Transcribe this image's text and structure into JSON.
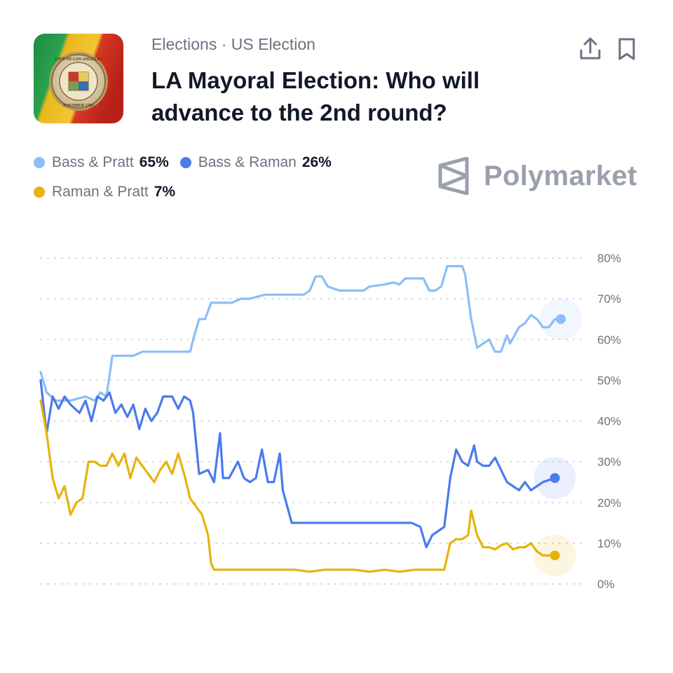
{
  "header": {
    "breadcrumb": "Elections · US Election",
    "title": "LA Mayoral Election: Who will advance to the 2nd round?",
    "logo_text_top": "CITY OF LOS ANGELES",
    "logo_text_bottom": "FOUNDED 1781"
  },
  "actions": {
    "share_icon": "upload-icon",
    "bookmark_icon": "bookmark-icon"
  },
  "brand": {
    "name": "Polymarket",
    "icon": "polymarket-logo-icon"
  },
  "legend": [
    {
      "name": "Bass & Pratt",
      "value": "65%",
      "color": "#8cbdf8"
    },
    {
      "name": "Bass & Raman",
      "value": "26%",
      "color": "#4a7bec"
    },
    {
      "name": "Raman & Pratt",
      "value": "7%",
      "color": "#e8b20c"
    }
  ],
  "chart_data": {
    "type": "line",
    "ylim": [
      0,
      80
    ],
    "yticks": [
      "0%",
      "10%",
      "20%",
      "30%",
      "40%",
      "50%",
      "60%",
      "70%",
      "80%"
    ],
    "grid": true,
    "series": [
      {
        "name": "Bass & Pratt",
        "color": "#8cbdf8",
        "points": [
          [
            0,
            52
          ],
          [
            2,
            47
          ],
          [
            5,
            45
          ],
          [
            10,
            45
          ],
          [
            15,
            46
          ],
          [
            18,
            45
          ],
          [
            20,
            47
          ],
          [
            22,
            46
          ],
          [
            24,
            56
          ],
          [
            27,
            56
          ],
          [
            31,
            56
          ],
          [
            34,
            57
          ],
          [
            38,
            57
          ],
          [
            42,
            57
          ],
          [
            48,
            57
          ],
          [
            50,
            57
          ],
          [
            51,
            60
          ],
          [
            53,
            65
          ],
          [
            55,
            65
          ],
          [
            57,
            69
          ],
          [
            60,
            69
          ],
          [
            64,
            69
          ],
          [
            67,
            70
          ],
          [
            70,
            70
          ],
          [
            75,
            71
          ],
          [
            80,
            71
          ],
          [
            85,
            71
          ],
          [
            88,
            71
          ],
          [
            90,
            72
          ],
          [
            92,
            75.5
          ],
          [
            94,
            75.5
          ],
          [
            96,
            73
          ],
          [
            100,
            72
          ],
          [
            104,
            72
          ],
          [
            108,
            72
          ],
          [
            110,
            73
          ],
          [
            115,
            73.5
          ],
          [
            118,
            74
          ],
          [
            120,
            73.5
          ],
          [
            122,
            75
          ],
          [
            125,
            75
          ],
          [
            128,
            75
          ],
          [
            130,
            72
          ],
          [
            132,
            72
          ],
          [
            134,
            73
          ],
          [
            136,
            78
          ],
          [
            139,
            78
          ],
          [
            141,
            78
          ],
          [
            142,
            76
          ],
          [
            144,
            65
          ],
          [
            146,
            58
          ],
          [
            148,
            59
          ],
          [
            150,
            60
          ],
          [
            152,
            57
          ],
          [
            154,
            57
          ],
          [
            156,
            61
          ],
          [
            157,
            59
          ],
          [
            160,
            63
          ],
          [
            162,
            64
          ],
          [
            164,
            66
          ],
          [
            166,
            65
          ],
          [
            168,
            63
          ],
          [
            170,
            63
          ],
          [
            172,
            65
          ],
          [
            174,
            65
          ]
        ]
      },
      {
        "name": "Bass & Raman",
        "color": "#4a7bec",
        "points": [
          [
            0,
            50
          ],
          [
            2,
            37
          ],
          [
            4,
            46
          ],
          [
            6,
            43
          ],
          [
            8,
            46
          ],
          [
            10,
            44
          ],
          [
            13,
            42
          ],
          [
            15,
            45
          ],
          [
            17,
            40
          ],
          [
            19,
            46
          ],
          [
            21,
            45
          ],
          [
            23,
            47
          ],
          [
            25,
            42
          ],
          [
            27,
            44
          ],
          [
            29,
            41
          ],
          [
            31,
            44
          ],
          [
            33,
            38
          ],
          [
            35,
            43
          ],
          [
            37,
            40
          ],
          [
            39,
            42
          ],
          [
            41,
            46
          ],
          [
            44,
            46
          ],
          [
            46,
            43
          ],
          [
            48,
            46
          ],
          [
            50,
            45
          ],
          [
            51,
            42
          ],
          [
            53,
            27
          ],
          [
            56,
            28
          ],
          [
            58,
            25
          ],
          [
            60,
            37
          ],
          [
            61,
            26
          ],
          [
            63,
            26
          ],
          [
            66,
            30
          ],
          [
            68,
            26
          ],
          [
            70,
            25
          ],
          [
            72,
            26
          ],
          [
            74,
            33
          ],
          [
            76,
            25
          ],
          [
            78,
            25
          ],
          [
            80,
            32
          ],
          [
            81,
            23
          ],
          [
            84,
            15
          ],
          [
            86,
            15
          ],
          [
            90,
            15
          ],
          [
            95,
            15
          ],
          [
            100,
            15
          ],
          [
            105,
            15
          ],
          [
            110,
            15
          ],
          [
            115,
            15
          ],
          [
            120,
            15
          ],
          [
            124,
            15
          ],
          [
            127,
            14
          ],
          [
            129,
            9
          ],
          [
            131,
            12
          ],
          [
            133,
            13
          ],
          [
            135,
            14
          ],
          [
            137,
            26
          ],
          [
            139,
            33
          ],
          [
            141,
            30
          ],
          [
            143,
            29
          ],
          [
            145,
            34
          ],
          [
            146,
            30
          ],
          [
            148,
            29
          ],
          [
            150,
            29
          ],
          [
            152,
            31
          ],
          [
            154,
            28
          ],
          [
            156,
            25
          ],
          [
            158,
            24
          ],
          [
            160,
            23
          ],
          [
            162,
            25
          ],
          [
            164,
            23
          ],
          [
            166,
            24
          ],
          [
            168,
            25
          ],
          [
            170,
            25.5
          ],
          [
            172,
            26
          ]
        ]
      },
      {
        "name": "Raman & Pratt",
        "color": "#e8b20c",
        "points": [
          [
            0,
            45
          ],
          [
            2,
            37
          ],
          [
            4,
            26
          ],
          [
            6,
            21
          ],
          [
            8,
            24
          ],
          [
            10,
            17
          ],
          [
            12,
            20
          ],
          [
            14,
            21
          ],
          [
            16,
            30
          ],
          [
            18,
            30
          ],
          [
            20,
            29
          ],
          [
            22,
            29
          ],
          [
            24,
            32
          ],
          [
            26,
            29
          ],
          [
            28,
            32
          ],
          [
            30,
            26
          ],
          [
            32,
            31
          ],
          [
            34,
            29
          ],
          [
            36,
            27
          ],
          [
            38,
            25
          ],
          [
            40,
            28
          ],
          [
            42,
            30
          ],
          [
            44,
            27
          ],
          [
            46,
            32
          ],
          [
            48,
            27
          ],
          [
            50,
            21
          ],
          [
            52,
            19
          ],
          [
            54,
            17
          ],
          [
            56,
            12
          ],
          [
            57,
            5
          ],
          [
            58,
            3.5
          ],
          [
            62,
            3.5
          ],
          [
            66,
            3.5
          ],
          [
            70,
            3.5
          ],
          [
            75,
            3.5
          ],
          [
            80,
            3.5
          ],
          [
            85,
            3.5
          ],
          [
            90,
            3
          ],
          [
            95,
            3.5
          ],
          [
            100,
            3.5
          ],
          [
            105,
            3.5
          ],
          [
            110,
            3
          ],
          [
            115,
            3.5
          ],
          [
            120,
            3
          ],
          [
            125,
            3.5
          ],
          [
            130,
            3.5
          ],
          [
            133,
            3.5
          ],
          [
            135,
            3.5
          ],
          [
            137,
            10
          ],
          [
            139,
            11
          ],
          [
            141,
            11
          ],
          [
            143,
            12
          ],
          [
            144,
            18
          ],
          [
            146,
            12
          ],
          [
            148,
            9
          ],
          [
            150,
            9
          ],
          [
            152,
            8.5
          ],
          [
            154,
            9.5
          ],
          [
            156,
            10
          ],
          [
            158,
            8.5
          ],
          [
            160,
            9
          ],
          [
            162,
            9
          ],
          [
            164,
            10
          ],
          [
            166,
            8
          ],
          [
            168,
            7
          ],
          [
            170,
            7
          ],
          [
            172,
            7
          ]
        ]
      }
    ]
  }
}
